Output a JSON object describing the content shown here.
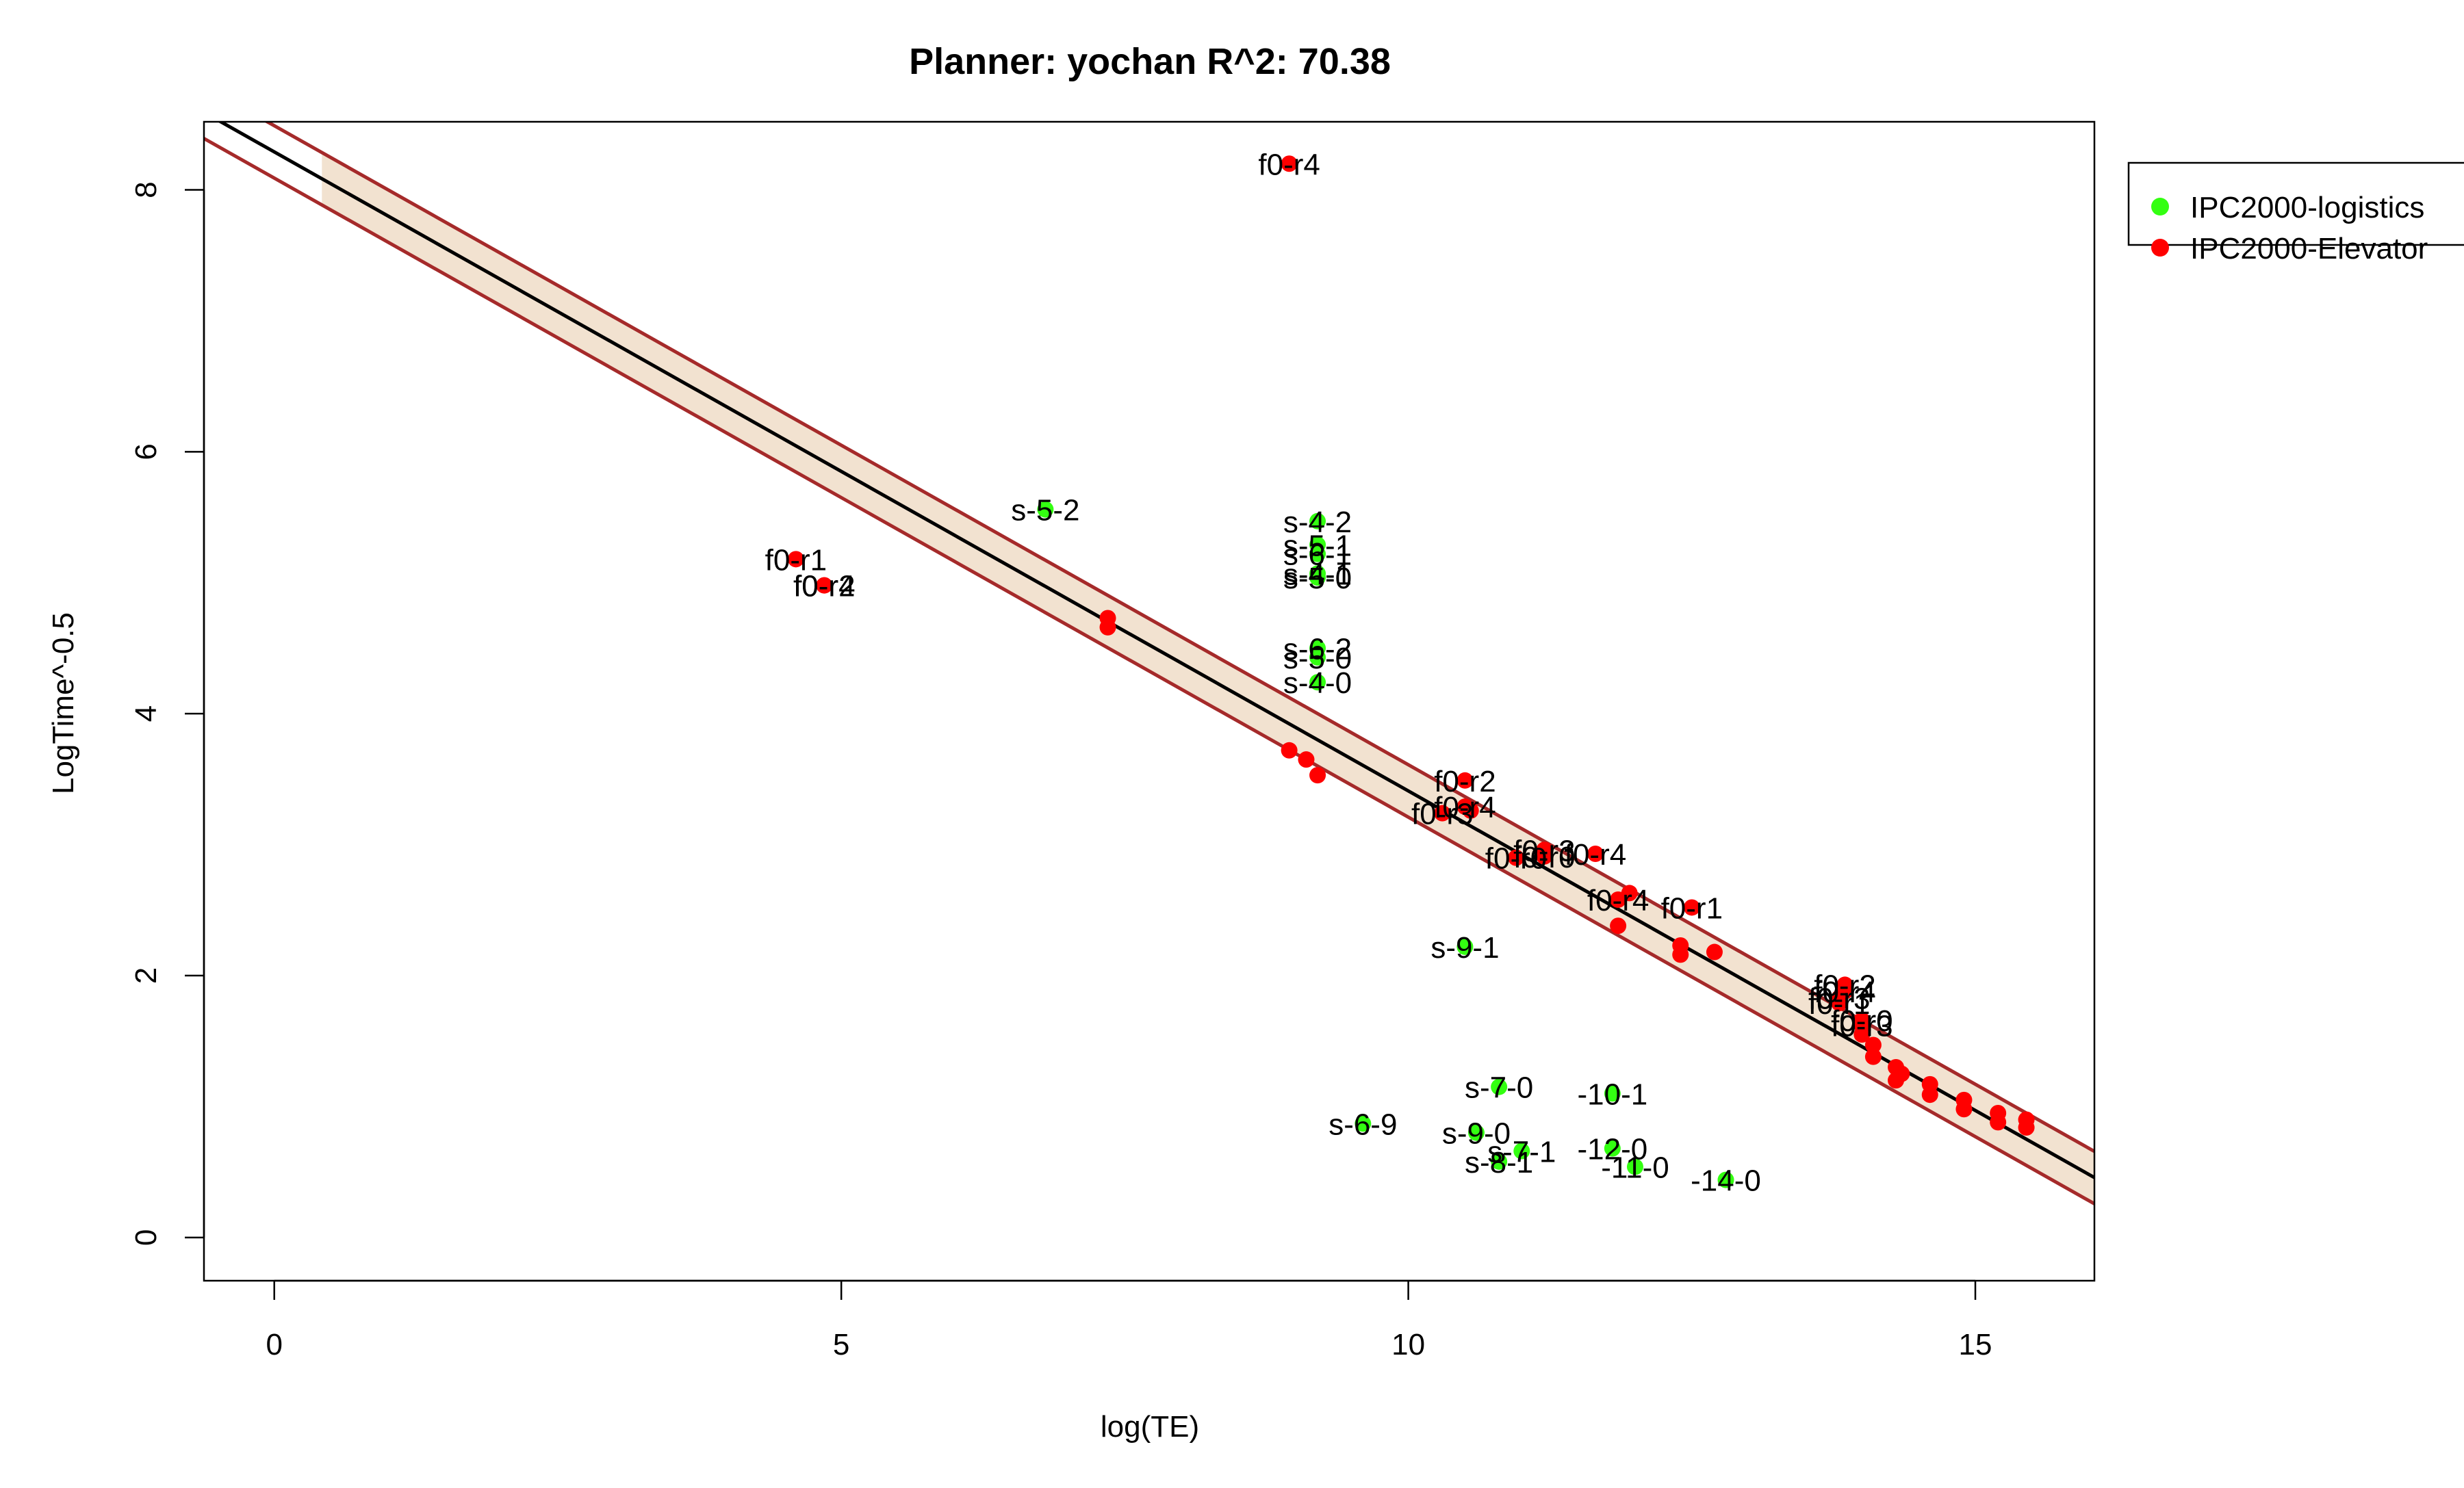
{
  "chart_data": {
    "type": "scatter",
    "title": "Planner: yochan R^2: 70.38",
    "xlabel": "log(TE)",
    "ylabel": "LogTime^-0.5",
    "xlim": [
      -0.62,
      16.05
    ],
    "ylim": [
      -0.33,
      8.52
    ],
    "xticks": [
      0,
      5,
      10,
      15
    ],
    "yticks": [
      0,
      2,
      4,
      6,
      8
    ],
    "grid": false,
    "legend_position": "top-right, outside plot",
    "fit": {
      "intercept": 8.29,
      "slope": -0.488,
      "band_half_width": 0.2,
      "band_x_range": [
        0.42,
        16.05
      ],
      "line_color": "#000000",
      "band_edge_color": "#a52a2a",
      "band_fill_color": "#f2e2d0"
    },
    "series": [
      {
        "name": "IPC2000-logistics",
        "color": "#33ff11",
        "points": [
          {
            "x": 6.8,
            "y": 5.56,
            "label": "s-5-2"
          },
          {
            "x": 9.2,
            "y": 5.47,
            "label": "s-4-2"
          },
          {
            "x": 9.2,
            "y": 5.29,
            "label": "s-5-1"
          },
          {
            "x": 9.2,
            "y": 5.22,
            "label": "s-6-1"
          },
          {
            "x": 9.2,
            "y": 5.07,
            "label": "s-4-1"
          },
          {
            "x": 9.2,
            "y": 5.04,
            "label": "s-5-0"
          },
          {
            "x": 9.2,
            "y": 4.5,
            "label": "s-6-2"
          },
          {
            "x": 9.2,
            "y": 4.43,
            "label": "s-5-0"
          },
          {
            "x": 9.2,
            "y": 4.24,
            "label": "s-4-0"
          },
          {
            "x": 10.5,
            "y": 2.22,
            "label": "s-9-1"
          },
          {
            "x": 10.8,
            "y": 1.15,
            "label": "s-7-0"
          },
          {
            "x": 11.8,
            "y": 1.1,
            "label": "-10-1"
          },
          {
            "x": 9.6,
            "y": 0.87,
            "label": "s-6-9"
          },
          {
            "x": 10.6,
            "y": 0.8,
            "label": "s-9-0"
          },
          {
            "x": 11.0,
            "y": 0.66,
            "label": "s-7-1"
          },
          {
            "x": 11.8,
            "y": 0.68,
            "label": "-12-0"
          },
          {
            "x": 10.8,
            "y": 0.58,
            "label": "s-8-1"
          },
          {
            "x": 12.0,
            "y": 0.54,
            "label": "-11-0"
          },
          {
            "x": 12.8,
            "y": 0.44,
            "label": "-14-0"
          }
        ]
      },
      {
        "name": "IPC2000-Elevator",
        "color": "#ff0000",
        "points": [
          {
            "x": 8.95,
            "y": 8.2,
            "label": "f0-r4"
          },
          {
            "x": 4.6,
            "y": 5.18,
            "label": "f0-r1"
          },
          {
            "x": 4.85,
            "y": 4.98,
            "label": "f0-r4"
          },
          {
            "x": 4.85,
            "y": 4.98,
            "label": "f0-r2"
          },
          {
            "x": 7.35,
            "y": 4.73,
            "label": ""
          },
          {
            "x": 7.35,
            "y": 4.66,
            "label": ""
          },
          {
            "x": 8.95,
            "y": 3.72,
            "label": ""
          },
          {
            "x": 9.1,
            "y": 3.65,
            "label": ""
          },
          {
            "x": 9.2,
            "y": 3.53,
            "label": ""
          },
          {
            "x": 10.5,
            "y": 3.49,
            "label": "f0-r2"
          },
          {
            "x": 10.3,
            "y": 3.24,
            "label": "f0-r3"
          },
          {
            "x": 10.5,
            "y": 3.29,
            "label": "f0-r4"
          },
          {
            "x": 10.55,
            "y": 3.26,
            "label": ""
          },
          {
            "x": 10.95,
            "y": 2.9,
            "label": "f0-r0"
          },
          {
            "x": 11.2,
            "y": 2.96,
            "label": "f0-r3"
          },
          {
            "x": 11.2,
            "y": 2.91,
            "label": "f0-r0"
          },
          {
            "x": 11.65,
            "y": 2.93,
            "label": "f0-r4"
          },
          {
            "x": 11.85,
            "y": 2.58,
            "label": "f0-r4"
          },
          {
            "x": 11.95,
            "y": 2.63,
            "label": ""
          },
          {
            "x": 12.5,
            "y": 2.52,
            "label": "f0-r1"
          },
          {
            "x": 11.85,
            "y": 2.38,
            "label": ""
          },
          {
            "x": 12.4,
            "y": 2.23,
            "label": ""
          },
          {
            "x": 12.4,
            "y": 2.16,
            "label": ""
          },
          {
            "x": 12.7,
            "y": 2.18,
            "label": ""
          },
          {
            "x": 13.85,
            "y": 1.93,
            "label": "f0-r2"
          },
          {
            "x": 13.85,
            "y": 1.88,
            "label": "f0-r4"
          },
          {
            "x": 13.8,
            "y": 1.83,
            "label": "f0-r3"
          },
          {
            "x": 13.8,
            "y": 1.79,
            "label": "f0-r1"
          },
          {
            "x": 14.0,
            "y": 1.66,
            "label": "f0-r0"
          },
          {
            "x": 14.0,
            "y": 1.62,
            "label": "f0-r3"
          },
          {
            "x": 14.0,
            "y": 1.55,
            "label": ""
          },
          {
            "x": 14.1,
            "y": 1.47,
            "label": ""
          },
          {
            "x": 14.1,
            "y": 1.38,
            "label": ""
          },
          {
            "x": 14.3,
            "y": 1.3,
            "label": ""
          },
          {
            "x": 14.35,
            "y": 1.25,
            "label": ""
          },
          {
            "x": 14.3,
            "y": 1.2,
            "label": ""
          },
          {
            "x": 14.6,
            "y": 1.17,
            "label": ""
          },
          {
            "x": 14.6,
            "y": 1.09,
            "label": ""
          },
          {
            "x": 14.9,
            "y": 1.05,
            "label": ""
          },
          {
            "x": 14.9,
            "y": 0.98,
            "label": ""
          },
          {
            "x": 15.2,
            "y": 0.95,
            "label": ""
          },
          {
            "x": 15.2,
            "y": 0.88,
            "label": ""
          },
          {
            "x": 15.45,
            "y": 0.9,
            "label": ""
          },
          {
            "x": 15.45,
            "y": 0.84,
            "label": ""
          }
        ]
      }
    ]
  }
}
